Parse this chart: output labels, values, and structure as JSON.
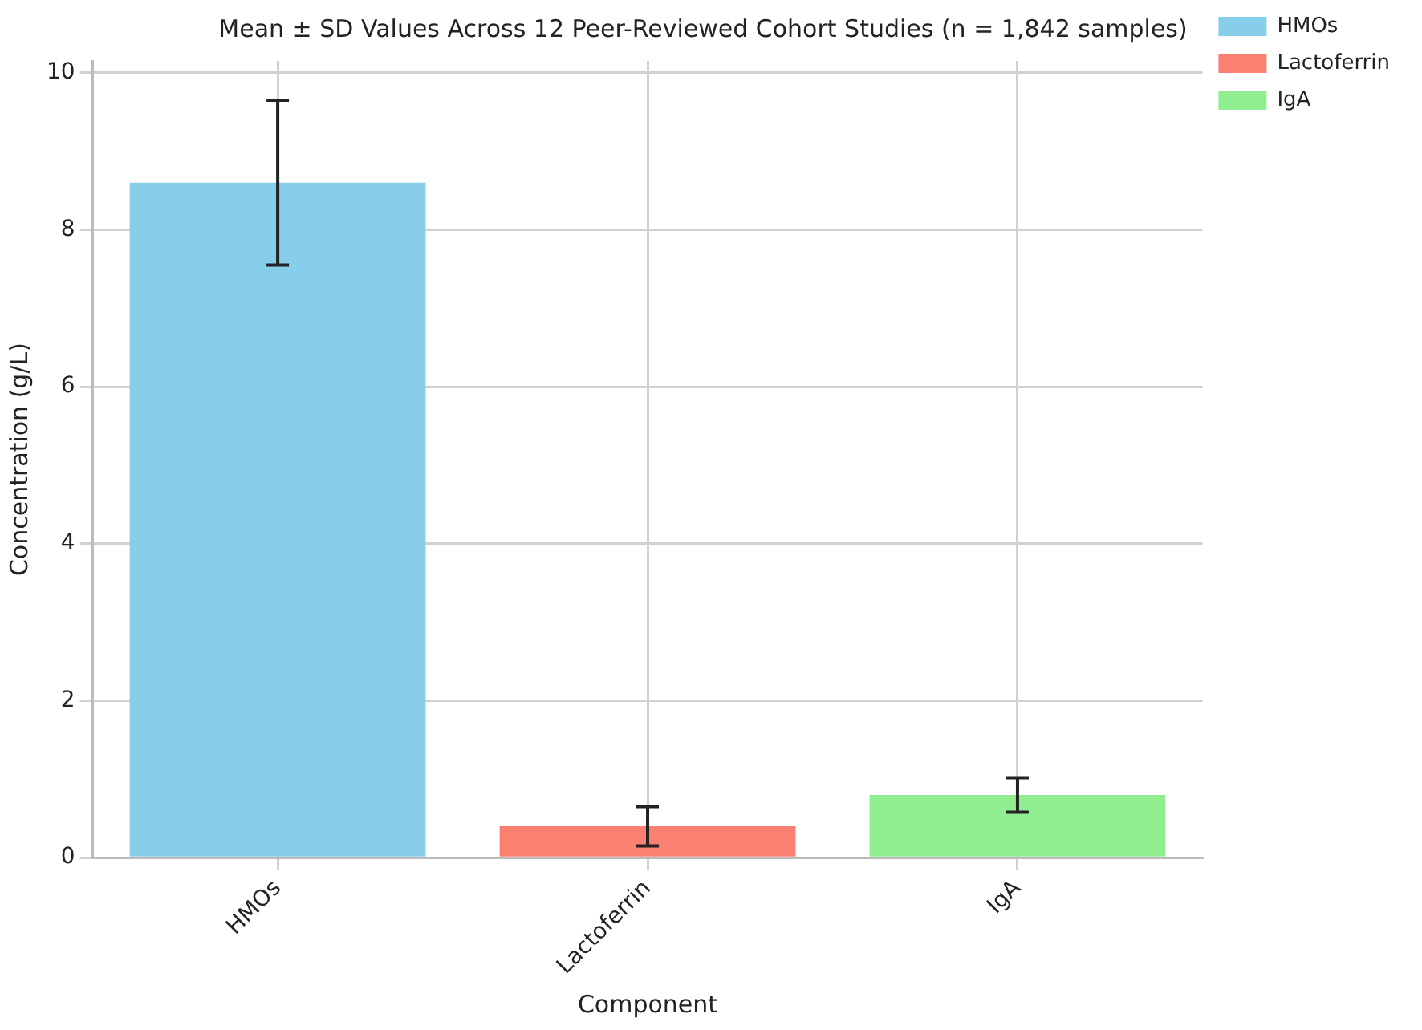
{
  "chart_data": {
    "type": "bar",
    "title": "Mean ± SD Values Across 12 Peer-Reviewed Cohort Studies (n = 1,842 samples)",
    "xlabel": "Component",
    "ylabel": "Concentration (g/L)",
    "categories": [
      "HMOs",
      "Lactoferrin",
      "IgA"
    ],
    "series": [
      {
        "name": "HMOs",
        "color": "#87ceeb",
        "values": [
          8.6,
          null,
          null
        ],
        "errors": [
          1.05,
          null,
          null
        ]
      },
      {
        "name": "Lactoferrin",
        "color": "#fa8072",
        "values": [
          null,
          0.4,
          null
        ],
        "errors": [
          null,
          0.25,
          null
        ]
      },
      {
        "name": "IgA",
        "color": "#90ee90",
        "values": [
          null,
          null,
          0.8
        ],
        "errors": [
          null,
          null,
          0.22
        ]
      }
    ],
    "ylim": [
      0,
      10.15
    ],
    "yticks": [
      0,
      2,
      4,
      6,
      8,
      10
    ],
    "grid": true,
    "legend": "top right"
  }
}
